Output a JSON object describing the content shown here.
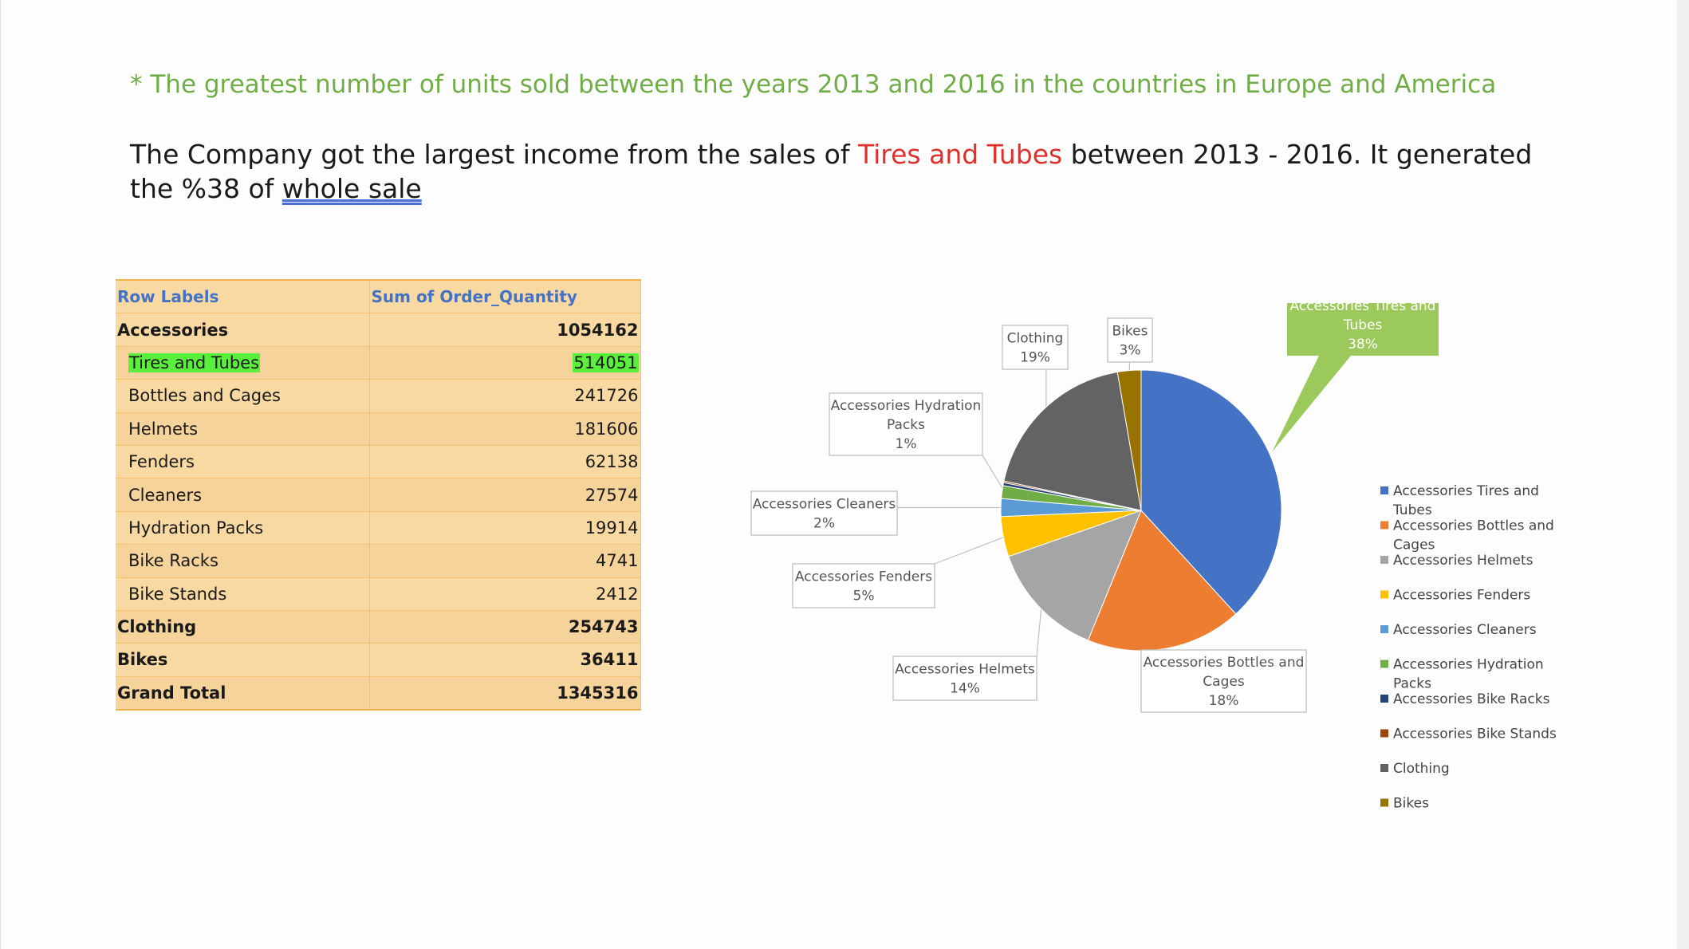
{
  "headline": "* The greatest number of units sold between the years 2013 and 2016 in the countries in Europe and America",
  "summary": {
    "part1": "The Company got the largest income from the sales of ",
    "highlight": "Tires and Tubes",
    "part2": " between 2013 - 2016. It generated the %38 of ",
    "underlined": "whole sale"
  },
  "pivot_table": {
    "headers": [
      "Row Labels",
      "Sum of Order_Quantity"
    ],
    "rows": [
      {
        "label": "Accessories",
        "value": "1054162",
        "kind": "category"
      },
      {
        "label": "Tires and Tubes",
        "value": "514051",
        "kind": "sub",
        "highlight": true
      },
      {
        "label": "Bottles and Cages",
        "value": "241726",
        "kind": "sub"
      },
      {
        "label": "Helmets",
        "value": "181606",
        "kind": "sub"
      },
      {
        "label": "Fenders",
        "value": "62138",
        "kind": "sub"
      },
      {
        "label": "Cleaners",
        "value": "27574",
        "kind": "sub"
      },
      {
        "label": "Hydration Packs",
        "value": "19914",
        "kind": "sub"
      },
      {
        "label": "Bike Racks",
        "value": "4741",
        "kind": "sub"
      },
      {
        "label": "Bike Stands",
        "value": "2412",
        "kind": "sub"
      },
      {
        "label": "Clothing",
        "value": "254743",
        "kind": "category"
      },
      {
        "label": "Bikes",
        "value": "36411",
        "kind": "category"
      },
      {
        "label": "Grand Total",
        "value": "1345316",
        "kind": "total"
      }
    ],
    "colors": {
      "highlight": "#5aef3d",
      "header_text": "#4472c4",
      "cell_fill": "#f8d9a2"
    }
  },
  "chart_data": {
    "type": "pie",
    "slices": [
      {
        "label": "Accessories Tires and Tubes",
        "value": 514051,
        "percent_label": "38%",
        "color": "#4472c4"
      },
      {
        "label": "Accessories Bottles and Cages",
        "value": 241726,
        "percent_label": "18%",
        "color": "#ed7d31"
      },
      {
        "label": "Accessories Helmets",
        "value": 181606,
        "percent_label": "14%",
        "color": "#a5a5a5"
      },
      {
        "label": "Accessories Fenders",
        "value": 62138,
        "percent_label": "5%",
        "color": "#ffc000"
      },
      {
        "label": "Accessories Cleaners",
        "value": 27574,
        "percent_label": "2%",
        "color": "#5b9bd5"
      },
      {
        "label": "Accessories Hydration Packs",
        "value": 19914,
        "percent_label": "1%",
        "color": "#70ad47"
      },
      {
        "label": "Accessories Bike Racks",
        "value": 4741,
        "percent_label": "",
        "color": "#264478"
      },
      {
        "label": "Accessories Bike Stands",
        "value": 2412,
        "percent_label": "",
        "color": "#9e480e"
      },
      {
        "label": "Clothing",
        "value": 254743,
        "percent_label": "19%",
        "color": "#636363"
      },
      {
        "label": "Bikes",
        "value": 36411,
        "percent_label": "3%",
        "color": "#997300"
      }
    ],
    "legend": {
      "position": "right",
      "entries": [
        "Accessories Tires and Tubes",
        "Accessories Bottles and Cages",
        "Accessories Helmets",
        "Accessories Fenders",
        "Accessories Cleaners",
        "Accessories Hydration Packs",
        "Accessories Bike Racks",
        "Accessories Bike Stands",
        "Clothing",
        "Bikes"
      ]
    },
    "highlighted_slice_callout_color": "#9bc95b"
  }
}
